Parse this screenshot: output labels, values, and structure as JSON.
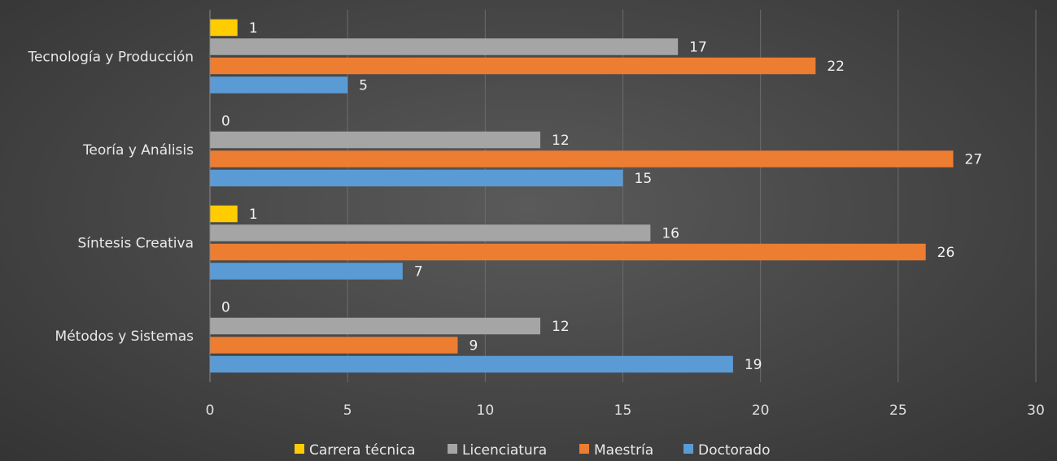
{
  "chart_data": {
    "type": "bar",
    "orientation": "horizontal",
    "categories": [
      "Métodos y Sistemas",
      "Síntesis Creativa",
      "Teoría y Análisis",
      "Tecnología y Producción"
    ],
    "series": [
      {
        "name": "Carrera técnica",
        "color": "#FFCC00",
        "values": [
          0,
          1,
          0,
          1
        ]
      },
      {
        "name": "Licenciatura",
        "color": "#A5A5A5",
        "values": [
          12,
          16,
          12,
          17
        ]
      },
      {
        "name": "Maestría",
        "color": "#ED7D31",
        "values": [
          9,
          26,
          27,
          22
        ]
      },
      {
        "name": "Doctorado",
        "color": "#5B9BD5",
        "values": [
          19,
          7,
          15,
          5
        ]
      }
    ],
    "xlim": [
      0,
      30
    ],
    "xticks": [
      0,
      5,
      10,
      15,
      20,
      25,
      30
    ],
    "grid": true,
    "legend": "bottom",
    "data_labels": true
  }
}
